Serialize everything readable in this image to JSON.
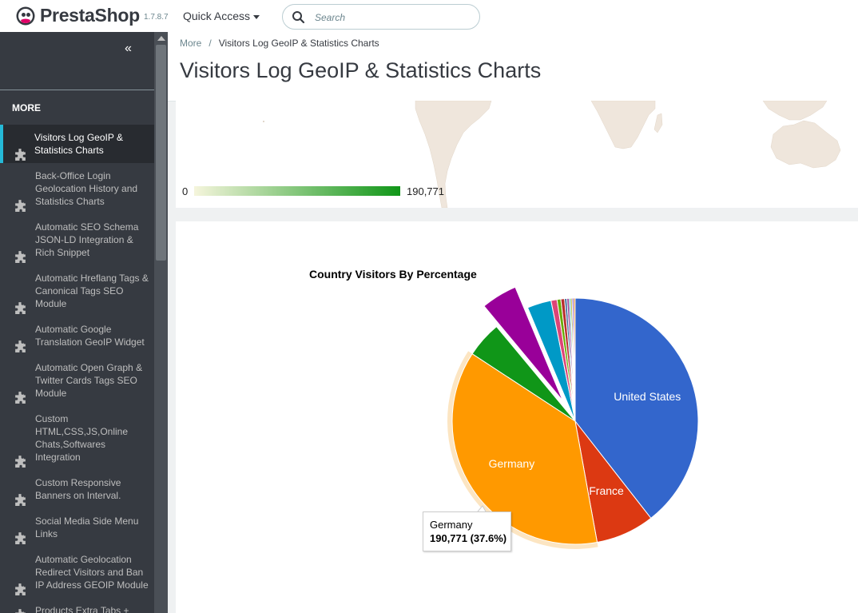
{
  "header": {
    "brand": "PrestaShop",
    "version": "1.7.8.7",
    "quick_access": "Quick Access",
    "search_placeholder": "Search"
  },
  "sidebar": {
    "collapse_icon": "double-chevron-left-icon",
    "section_title": "MORE",
    "items": [
      {
        "label": "Visitors Log GeoIP & Statistics Charts",
        "active": true
      },
      {
        "label": "Back-Office Login Geolocation History and Statistics Charts"
      },
      {
        "label": "Automatic SEO Schema JSON-LD Integration & Rich Snippet"
      },
      {
        "label": "Automatic Hreflang Tags & Canonical Tags SEO Module"
      },
      {
        "label": "Automatic Google Translation GeoIP Widget"
      },
      {
        "label": "Automatic Open Graph & Twitter Cards Tags SEO Module"
      },
      {
        "label": "Custom HTML,CSS,JS,Online Chats,Softwares Integration"
      },
      {
        "label": "Custom Responsive Banners on Interval."
      },
      {
        "label": "Social Media Side Menu Links"
      },
      {
        "label": "Automatic Geolocation Redirect Visitors and Ban IP Address GEOIP Module"
      },
      {
        "label": "Products Extra Tabs +"
      }
    ]
  },
  "breadcrumb": {
    "parent": "More",
    "separator": "/",
    "current": "Visitors Log GeoIP & Statistics Charts"
  },
  "page_title": "Visitors Log GeoIP & Statistics Charts",
  "map": {
    "legend_min": "0",
    "legend_max": "190,771",
    "colors": {
      "min": "#f5f5dc",
      "max": "#109618",
      "land": "#efe6dc"
    }
  },
  "chart_data": {
    "type": "pie",
    "title": "Country Visitors By Percentage",
    "slices": [
      {
        "label": "United States",
        "value": 40.0,
        "color": "#3366cc",
        "show_label": true
      },
      {
        "label": "France",
        "value": 7.8,
        "color": "#dc3912",
        "show_label": true
      },
      {
        "label": "Germany",
        "value": 37.6,
        "color": "#ff9900",
        "show_label": true
      },
      {
        "label": "",
        "value": 4.8,
        "color": "#109618"
      },
      {
        "label": "",
        "value": 4.8,
        "color": "#990099",
        "exploded": true
      },
      {
        "label": "",
        "value": 3.2,
        "color": "#0099c6"
      },
      {
        "label": "",
        "value": 0.8,
        "color": "#dd4477"
      },
      {
        "label": "",
        "value": 0.5,
        "color": "#66aa00"
      },
      {
        "label": "",
        "value": 0.5,
        "color": "#b82e2e"
      },
      {
        "label": "",
        "value": 0.3,
        "color": "#316395"
      },
      {
        "label": "",
        "value": 0.3,
        "color": "#994499"
      },
      {
        "label": "",
        "value": 0.2,
        "color": "#22aa99"
      },
      {
        "label": "",
        "value": 0.2,
        "color": "#aaaa11"
      },
      {
        "label": "",
        "value": 0.2,
        "color": "#6633cc"
      },
      {
        "label": "",
        "value": 0.2,
        "color": "#e67300"
      }
    ],
    "highlighted": "Germany",
    "tooltip": {
      "label": "Germany",
      "value": "190,771 (37.6%)"
    }
  }
}
